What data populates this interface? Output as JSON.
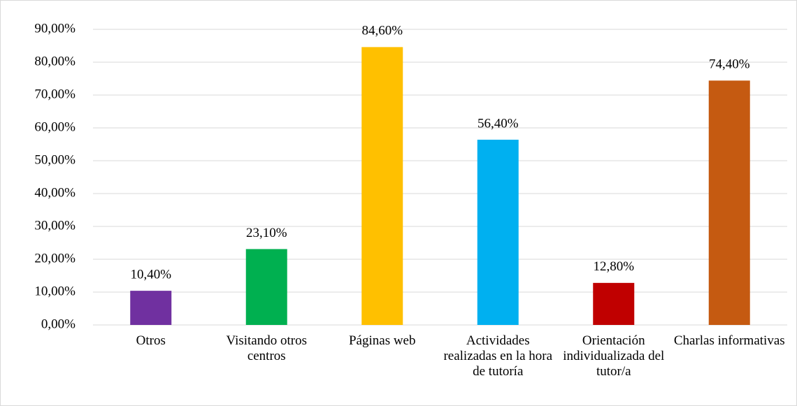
{
  "chart_data": {
    "type": "bar",
    "categories": [
      "Otros",
      "Visitando otros centros",
      "Páginas web",
      "Actividades realizadas en la hora de tutoría",
      "Orientación individualizada del tutor/a",
      "Charlas informativas"
    ],
    "values": [
      10.4,
      23.1,
      84.6,
      56.4,
      12.8,
      74.4
    ],
    "value_labels": [
      "10,40%",
      "23,10%",
      "84,60%",
      "56,40%",
      "12,80%",
      "74,40%"
    ],
    "colors": [
      "#7030a0",
      "#00b050",
      "#ffc000",
      "#00b0f0",
      "#c00000",
      "#c55a11"
    ],
    "ylim": [
      0,
      90
    ],
    "yticks": [
      {
        "value": 0,
        "label": "0,00%"
      },
      {
        "value": 10,
        "label": "10,00%"
      },
      {
        "value": 20,
        "label": "20,00%"
      },
      {
        "value": 30,
        "label": "30,00%"
      },
      {
        "value": 40,
        "label": "40,00%"
      },
      {
        "value": 50,
        "label": "50,00%"
      },
      {
        "value": 60,
        "label": "60,00%"
      },
      {
        "value": 70,
        "label": "70,00%"
      },
      {
        "value": 80,
        "label": "80,00%"
      },
      {
        "value": 90,
        "label": "90,00%"
      }
    ],
    "grid": true
  }
}
